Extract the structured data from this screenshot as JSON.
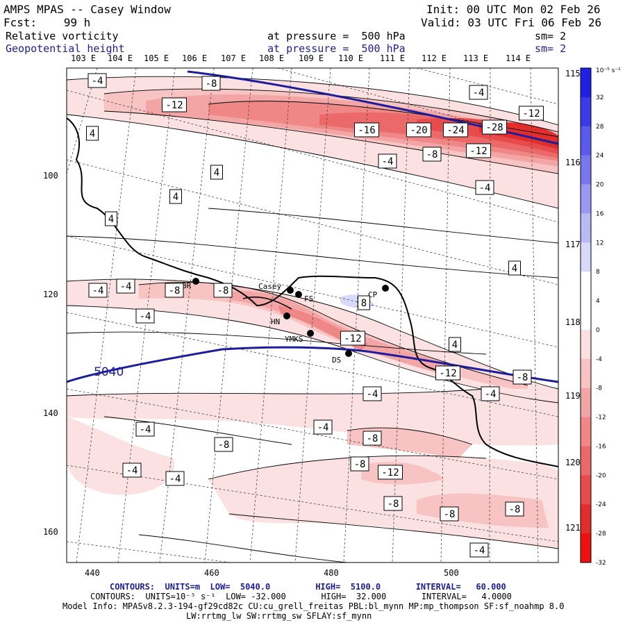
{
  "header": {
    "title": "AMPS MPAS -- Casey Window",
    "init": "Init: 00 UTC Mon 02 Feb 26",
    "fcst": "Fcst:    99 h",
    "valid": "Valid: 03 UTC Fri 06 Feb 26",
    "field1": "Relative vorticity",
    "field2": "Geopotential height",
    "pressure1": "at pressure =  500 hPa",
    "pressure2": "at pressure =  500 hPa",
    "sm1": "sm= 2",
    "sm2": "sm= 2"
  },
  "map": {
    "top_lon_labels": [
      "103 E",
      "104 E",
      "105 E",
      "106 E",
      "107 E",
      "108 E",
      "109 E",
      "110 E",
      "111 E",
      "112 E",
      "113 E",
      "114 E"
    ],
    "right_lon_labels": [
      "115 E",
      "116 E",
      "117 E",
      "118 E",
      "119 E",
      "120 E",
      "121 E"
    ],
    "x_ticks": [
      "440",
      "460",
      "480",
      "500"
    ],
    "y_ticks": [
      "100",
      "120",
      "140",
      "160"
    ],
    "stations": [
      "Casey",
      "FS",
      "CP",
      "HN",
      "YMKS",
      "DS",
      "BR"
    ],
    "height_contour_label": "5040",
    "contour_labels": [
      "-4",
      "-8",
      "-12",
      "-16",
      "-20",
      "-24",
      "-28",
      "4",
      "8"
    ]
  },
  "colorbar": {
    "units": "10⁻⁵ s⁻¹",
    "labels": [
      "32",
      "28",
      "24",
      "20",
      "16",
      "12",
      "8",
      "4",
      "0",
      "-4",
      "-8",
      "-12",
      "-16",
      "-20",
      "-24",
      "-28",
      "-32"
    ],
    "colors": [
      "#1f1fe6",
      "#3a3ae8",
      "#5a5aeb",
      "#7878ee",
      "#9999f2",
      "#b9b9f6",
      "#d8d8fa",
      "#ffffff",
      "#ffffff",
      "#fbe1e1",
      "#f7c3c3",
      "#f3a5a5",
      "#ef8787",
      "#eb6969",
      "#e74b4b",
      "#e32d2d",
      "#ee1111"
    ]
  },
  "footer": {
    "line1": "CONTOURS:  UNITS=m  LOW=  5040.0         HIGH=  5100.0       INTERVAL=   60.000",
    "line2": "CONTOURS:  UNITS=10⁻⁵ s⁻¹  LOW= -32.000       HIGH=  32.000       INTERVAL=   4.0000",
    "line3": "Model Info: MPASv8.2.3-194-gf29cd82c CU:cu_grell_freitas PBL:bl_mynn MP:mp_thompson SF:sf_noahmp 8.0",
    "line4": "LW:rrtmg_lw SW:rrtmg_sw SFLAY:sf_mynn"
  }
}
